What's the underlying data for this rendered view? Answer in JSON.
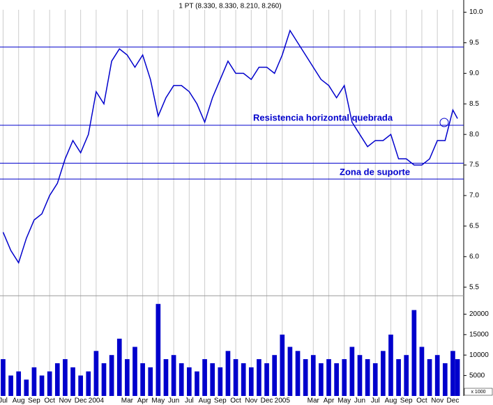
{
  "chart_data": {
    "type": "line",
    "title": "1 PT (8.330, 8.330, 8.210, 8.260)",
    "annotations": [
      "Resistencia horizontal quebrada",
      "Zona de suporte"
    ],
    "volume_unit": "x 1000",
    "color": "#0000cc",
    "xlim": [
      -0.2,
      29.7
    ],
    "xticks": [
      {
        "value": 0,
        "label": "Jul"
      },
      {
        "value": 1,
        "label": "Aug"
      },
      {
        "value": 2,
        "label": "Sep"
      },
      {
        "value": 3,
        "label": "Oct"
      },
      {
        "value": 4,
        "label": "Nov"
      },
      {
        "value": 5,
        "label": "Dec"
      },
      {
        "value": 6,
        "label": "2004"
      },
      {
        "value": 8,
        "label": "Mar"
      },
      {
        "value": 9,
        "label": "Apr"
      },
      {
        "value": 10,
        "label": "May"
      },
      {
        "value": 11,
        "label": "Jun"
      },
      {
        "value": 12,
        "label": "Jul"
      },
      {
        "value": 13,
        "label": "Aug"
      },
      {
        "value": 14,
        "label": "Sep"
      },
      {
        "value": 15,
        "label": "Oct"
      },
      {
        "value": 16,
        "label": "Nov"
      },
      {
        "value": 17,
        "label": "Dec"
      },
      {
        "value": 18,
        "label": "2005"
      },
      {
        "value": 20,
        "label": "Mar"
      },
      {
        "value": 21,
        "label": "Apr"
      },
      {
        "value": 22,
        "label": "May"
      },
      {
        "value": 23,
        "label": "Jun"
      },
      {
        "value": 24,
        "label": "Jul"
      },
      {
        "value": 25,
        "label": "Aug"
      },
      {
        "value": 26,
        "label": "Sep"
      },
      {
        "value": 27,
        "label": "Oct"
      },
      {
        "value": 28,
        "label": "Nov"
      },
      {
        "value": 29,
        "label": "Dec"
      }
    ],
    "ylim": [
      5.36,
      10.2
    ],
    "yticks": [
      5.5,
      {
        "value": 6,
        "label": "6.0"
      },
      6.5,
      {
        "value": 7,
        "label": "7.0"
      },
      7.5,
      {
        "value": 8,
        "label": "8.0"
      },
      8.5,
      {
        "value": 9,
        "label": "9.0"
      },
      9.5,
      {
        "value": 10,
        "label": "10.0"
      }
    ],
    "hlines": [
      9.43,
      8.15,
      7.53,
      7.27
    ],
    "y2lim": [
      0,
      24500
    ],
    "y2ticks": [
      5000,
      10000,
      15000,
      20000
    ],
    "x": [
      0,
      0.5,
      1,
      1.5,
      2,
      2.5,
      3,
      3.5,
      4,
      4.5,
      5,
      5.5,
      6,
      6.5,
      7,
      7.5,
      8,
      8.5,
      9,
      9.5,
      10,
      10.5,
      11,
      11.5,
      12,
      12.5,
      13,
      13.5,
      14,
      14.5,
      15,
      15.5,
      16,
      16.5,
      17,
      17.5,
      18,
      18.5,
      19,
      19.5,
      20,
      20.5,
      21,
      21.5,
      22,
      22.5,
      23,
      23.5,
      24,
      24.5,
      25,
      25.5,
      26,
      26.5,
      27,
      27.5,
      28,
      28.5,
      29,
      29.3
    ],
    "series": [
      {
        "name": "Price",
        "color": "#0000cc",
        "values": [
          6.4,
          6.1,
          5.9,
          6.3,
          6.6,
          6.7,
          7.0,
          7.2,
          7.6,
          7.9,
          7.7,
          8.0,
          8.7,
          8.5,
          9.2,
          9.4,
          9.3,
          9.1,
          9.3,
          8.9,
          8.3,
          8.6,
          8.8,
          8.8,
          8.7,
          8.5,
          8.2,
          8.6,
          8.9,
          9.2,
          9.0,
          9.0,
          8.9,
          9.1,
          9.1,
          9.0,
          9.3,
          9.7,
          9.5,
          9.3,
          9.1,
          8.9,
          8.8,
          8.6,
          8.8,
          8.2,
          8.0,
          7.8,
          7.9,
          7.9,
          8.0,
          7.6,
          7.6,
          7.5,
          7.5,
          7.6,
          7.9,
          7.9,
          8.4,
          8.26
        ]
      },
      {
        "name": "Volume",
        "color": "#0000cc",
        "axis": "y2",
        "values": [
          9000,
          5000,
          6000,
          4000,
          7000,
          5000,
          6000,
          8000,
          9000,
          7000,
          5000,
          6000,
          11000,
          8000,
          10000,
          14000,
          9000,
          12000,
          8000,
          7000,
          22500,
          9000,
          10000,
          8000,
          7000,
          6000,
          9000,
          8000,
          7000,
          11000,
          9000,
          8000,
          7000,
          9000,
          8000,
          10000,
          15000,
          12000,
          11000,
          9000,
          10000,
          8000,
          9000,
          8000,
          9000,
          12000,
          10000,
          9000,
          8000,
          11000,
          15000,
          9000,
          10000,
          21000,
          12000,
          9000,
          10000,
          8000,
          11000,
          9000
        ]
      }
    ]
  }
}
